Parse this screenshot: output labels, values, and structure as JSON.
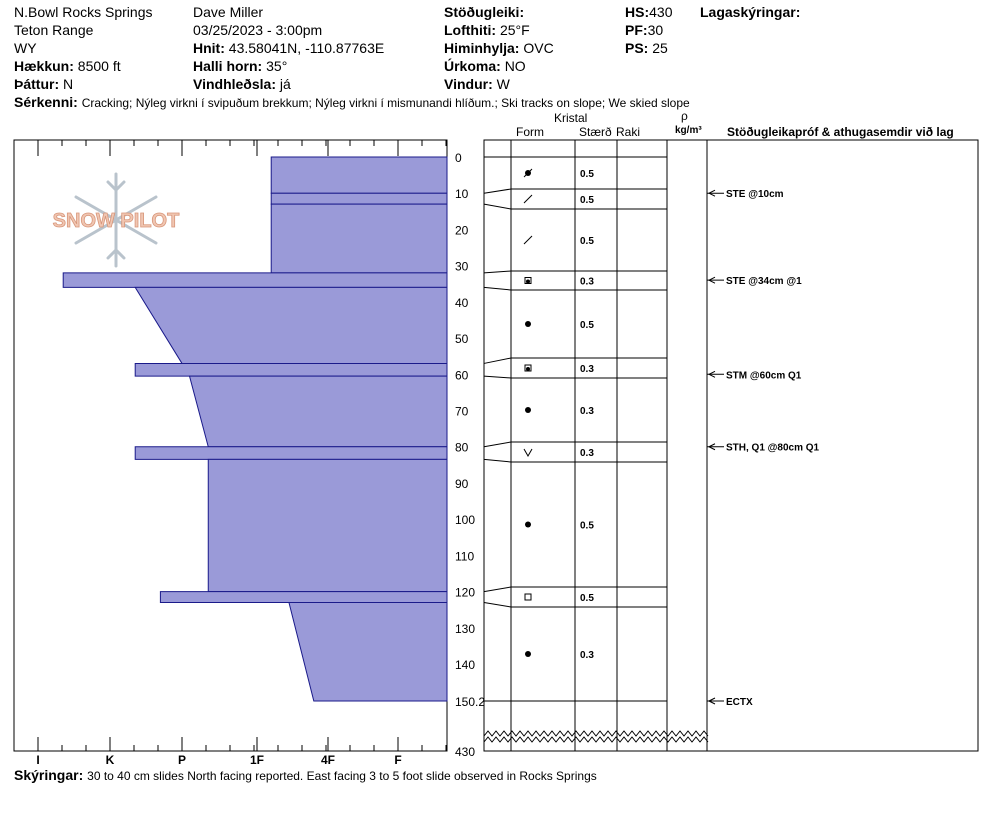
{
  "header": {
    "location": "N.Bowl Rocks Springs",
    "range": "Teton Range",
    "state": "WY",
    "elevation_label": "Hækkun:",
    "elevation_value": "8500 ft",
    "aspect_label": "Þáttur:",
    "aspect_value": "N",
    "observer": "Dave Miller",
    "datetime": "03/25/2023 - 3:00pm",
    "coords_label": "Hnit:",
    "coords_value": "43.58041N, -110.87763E",
    "slope_label": "Halli horn:",
    "slope_value": "35°",
    "wind_loading_label": "Vindhleðsla:",
    "wind_loading_value": "já",
    "stability_label": "Stöðugleiki:",
    "air_temp_label": "Lofthiti:",
    "air_temp_value": "25°F",
    "sky_label": "Himinhylja:",
    "sky_value": "OVC",
    "precip_label": "Úrkoma:",
    "precip_value": "NO",
    "wind_label": "Vindur:",
    "wind_value": "W",
    "hs_label": "HS:",
    "hs_value": "430",
    "pf_label": "PF:",
    "pf_value": "30",
    "ps_label": "PS:",
    "ps_value": "25",
    "layer_notes_label": "Lagaskýringar:",
    "features_label": "Sérkenni:",
    "features_value": "Cracking;  Nýleg virkni í svipuðum brekkum;  Nýleg virkni í mismunandi hlíðum.;  Ski tracks on slope;  We skied slope"
  },
  "columns": {
    "crystal": "Kristal",
    "form": "Form",
    "size": "Stærð",
    "moisture": "Raki",
    "rho": "ρ",
    "density_unit": "kg/m³",
    "tests_header": "Stöðugleikapróf & athugasemdir við lag"
  },
  "footer": {
    "comments_label": "Skýringar:",
    "comments_value": "30 to 40 cm slides North facing reported.  East facing 3 to 5 foot slide observed in Rocks Springs"
  },
  "logo_text": "SNOW PILOT",
  "colors": {
    "layer_fill": "#9a9ad8",
    "layer_stroke": "#1a1a8a",
    "axis": "#000000"
  },
  "chart_data": {
    "type": "snow-profile",
    "hardness_scale": [
      "I",
      "K",
      "P",
      "1F",
      "4F",
      "F"
    ],
    "depth_ticks": [
      "0",
      "10",
      "20",
      "30",
      "40",
      "50",
      "60",
      "70",
      "80",
      "90",
      "100",
      "110",
      "120",
      "130",
      "140",
      "150.2",
      "430"
    ],
    "ylim": [
      0,
      150.2
    ],
    "total_depth": 430,
    "layers": [
      {
        "top": 0,
        "bottom": 10,
        "hardness_top": 3.2,
        "hardness_bottom": 3.2,
        "grain": "precip-particles",
        "size": "0.5"
      },
      {
        "top": 10,
        "bottom": 13,
        "hardness_top": 3.2,
        "hardness_bottom": 3.2,
        "grain": "decomposing",
        "size": "0.5"
      },
      {
        "top": 13,
        "bottom": 32,
        "hardness_top": 3.2,
        "hardness_bottom": 3.2,
        "grain": "decomposing",
        "size": "0.5"
      },
      {
        "top": 32,
        "bottom": 36,
        "hardness_top": 0.35,
        "hardness_bottom": 0.35,
        "grain": "faceted-rounded",
        "size": "0.3"
      },
      {
        "top": 36,
        "bottom": 57,
        "hardness_top": 1.35,
        "hardness_bottom": 2.0,
        "grain": "rounded",
        "size": "0.5"
      },
      {
        "top": 57,
        "bottom": 60.5,
        "hardness_top": 1.35,
        "hardness_bottom": 1.35,
        "grain": "faceted-rounded",
        "size": "0.3"
      },
      {
        "top": 60.5,
        "bottom": 80,
        "hardness_top": 2.1,
        "hardness_bottom": 2.35,
        "grain": "rounded",
        "size": "0.3"
      },
      {
        "top": 80,
        "bottom": 83.5,
        "hardness_top": 1.35,
        "hardness_bottom": 1.35,
        "grain": "surface-hoar",
        "size": "0.3"
      },
      {
        "top": 83.5,
        "bottom": 120,
        "hardness_top": 2.35,
        "hardness_bottom": 2.35,
        "grain": "rounded",
        "size": "0.5"
      },
      {
        "top": 120,
        "bottom": 123,
        "hardness_top": 1.7,
        "hardness_bottom": 1.7,
        "grain": "faceted",
        "size": "0.5"
      },
      {
        "top": 123,
        "bottom": 150.2,
        "hardness_top": 3.45,
        "hardness_bottom": 3.8,
        "grain": "rounded",
        "size": "0.3"
      }
    ],
    "tests": [
      {
        "depth": 10,
        "label": "STE @10cm"
      },
      {
        "depth": 34,
        "label": "STE @34cm  @1"
      },
      {
        "depth": 60,
        "label": "STM @60cm  Q1"
      },
      {
        "depth": 80,
        "label": "STH, Q1 @80cm  Q1"
      },
      {
        "depth": 150.2,
        "label": "ECTX"
      }
    ]
  }
}
